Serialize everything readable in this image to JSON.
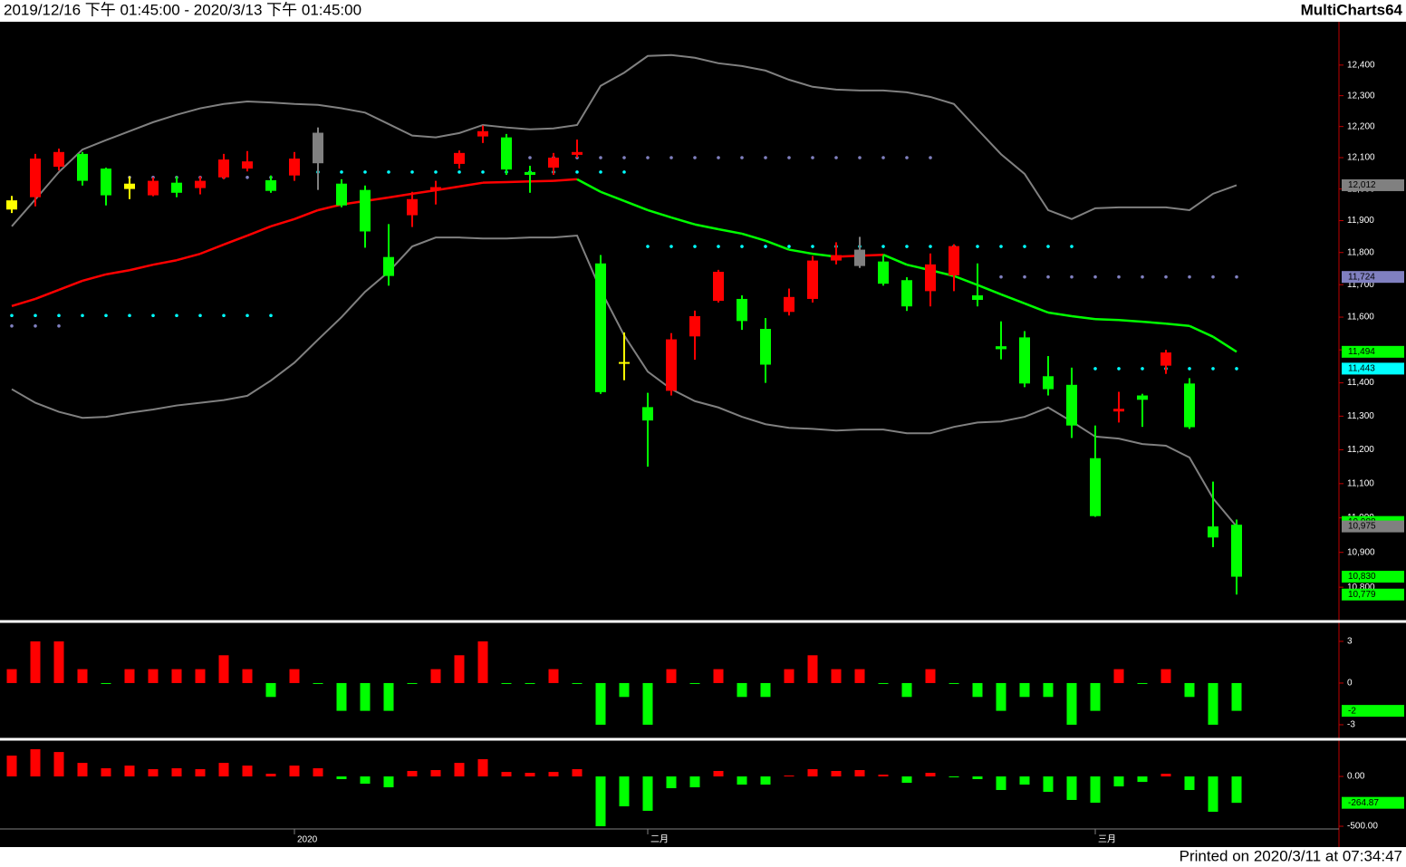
{
  "header": {
    "range": "2019/12/16 下午 01:45:00 - 2020/3/13 下午 01:45:00",
    "brand": "MultiCharts64"
  },
  "footer": {
    "printed": "Printed on 2020/3/11 at 07:34:47"
  },
  "chart_data": [
    {
      "type": "candlestick",
      "categories": [
        null,
        null,
        null,
        null,
        null,
        null,
        null,
        null,
        null,
        null,
        null,
        null,
        "2020",
        null,
        null,
        null,
        null,
        null,
        null,
        null,
        null,
        null,
        null,
        null,
        null,
        null,
        null,
        "二月",
        null,
        null,
        null,
        null,
        null,
        null,
        null,
        null,
        null,
        null,
        null,
        null,
        null,
        null,
        null,
        null,
        null,
        null,
        "三月",
        null,
        null,
        null,
        null,
        null,
        null
      ],
      "open": [
        11935,
        11974,
        12071,
        12112,
        12065,
        12017,
        11980,
        12020,
        12003,
        12037,
        12065,
        12028,
        12043,
        12082,
        12017,
        11997,
        11786,
        11917,
        11997,
        12080,
        12168,
        12165,
        12054,
        12068,
        12109,
        11766,
        11463,
        11327,
        11376,
        11541,
        11650,
        11656,
        11564,
        11616,
        11656,
        11775,
        11809,
        11772,
        11714,
        11680,
        11729,
        11667,
        11511,
        11538,
        11420,
        11394,
        11175,
        11314,
        11362,
        11452,
        11398,
        10975,
        10980
      ],
      "high": [
        11978,
        12112,
        12129,
        12118,
        12068,
        12040,
        12037,
        12040,
        12040,
        12112,
        12121,
        12043,
        12118,
        12197,
        12031,
        12011,
        11889,
        11991,
        12026,
        12123,
        12203,
        12176,
        12074,
        12115,
        12158,
        11792,
        11553,
        11370,
        11551,
        11620,
        11746,
        11667,
        11597,
        11688,
        11789,
        11832,
        11849,
        11792,
        11723,
        11797,
        11826,
        11766,
        11587,
        11557,
        11481,
        11446,
        11272,
        11373,
        11367,
        11500,
        11414,
        11106,
        10995
      ],
      "low": [
        11924,
        11945,
        12059,
        12011,
        11948,
        11968,
        11977,
        11974,
        11983,
        12031,
        12056,
        11988,
        12026,
        11997,
        11942,
        11815,
        11697,
        11880,
        11951,
        12065,
        12147,
        12045,
        11988,
        12045,
        12100,
        11367,
        11408,
        11150,
        11362,
        11470,
        11645,
        11561,
        11400,
        11605,
        11645,
        11763,
        11752,
        11697,
        11619,
        11633,
        11680,
        11633,
        11471,
        11387,
        11362,
        11235,
        11003,
        11281,
        11268,
        11427,
        11262,
        10915,
        10779
      ],
      "close": [
        11964,
        12097,
        12118,
        12026,
        11980,
        12000,
        12026,
        11988,
        12026,
        12094,
        12088,
        11994,
        12097,
        12180,
        11948,
        11866,
        11727,
        11968,
        12006,
        12115,
        12185,
        12062,
        12045,
        12100,
        12118,
        11372,
        11463,
        11287,
        11532,
        11603,
        11740,
        11588,
        11455,
        11662,
        11775,
        11792,
        11758,
        11703,
        11633,
        11763,
        11820,
        11653,
        11502,
        11398,
        11381,
        11272,
        11005,
        11322,
        11349,
        11492,
        11267,
        10943,
        10830
      ],
      "candle_colors": [
        "#ffff00",
        "#ff0000",
        "#ff0000",
        "#00ff00",
        "#00ff00",
        "#ffff00",
        "#ff0000",
        "#00ff00",
        "#ff0000",
        "#ff0000",
        "#ff0000",
        "#00ff00",
        "#ff0000",
        "#808080",
        "#00ff00",
        "#00ff00",
        "#00ff00",
        "#ff0000",
        "#ff0000",
        "#ff0000",
        "#ff0000",
        "#00ff00",
        "#00ff00",
        "#ff0000",
        "#ff0000",
        "#00ff00",
        "#ffff00",
        "#00ff00",
        "#ff0000",
        "#ff0000",
        "#ff0000",
        "#00ff00",
        "#00ff00",
        "#ff0000",
        "#ff0000",
        "#ff0000",
        "#808080",
        "#00ff00",
        "#00ff00",
        "#ff0000",
        "#ff0000",
        "#00ff00",
        "#00ff00",
        "#00ff00",
        "#00ff00",
        "#00ff00",
        "#00ff00",
        "#ff0000",
        "#00ff00",
        "#ff0000",
        "#00ff00",
        "#00ff00",
        "#00ff00"
      ],
      "bands": [
        {
          "color": "#808080",
          "values": [
            11882,
            11967,
            12054,
            12126,
            12156,
            12185,
            12214,
            12238,
            12259,
            12273,
            12281,
            12278,
            12273,
            12270,
            12259,
            12245,
            12208,
            12171,
            12165,
            12179,
            12205,
            12197,
            12191,
            12194,
            12205,
            12332,
            12375,
            12430,
            12433,
            12424,
            12406,
            12397,
            12382,
            12352,
            12329,
            12320,
            12317,
            12317,
            12311,
            12296,
            12273,
            12191,
            12111,
            12048,
            11933,
            11905,
            11939,
            11942,
            11942,
            11942,
            11933,
            11985,
            12012
          ]
        },
        {
          "color": "#808080",
          "values": [
            11381,
            11340,
            11313,
            11295,
            11298,
            11310,
            11320,
            11332,
            11340,
            11348,
            11361,
            11407,
            11461,
            11531,
            11600,
            11678,
            11740,
            11819,
            11847,
            11847,
            11844,
            11844,
            11847,
            11847,
            11853,
            11684,
            11544,
            11434,
            11381,
            11345,
            11326,
            11298,
            11276,
            11265,
            11262,
            11257,
            11260,
            11260,
            11249,
            11249,
            11268,
            11281,
            11284,
            11298,
            11326,
            11284,
            11239,
            11233,
            11217,
            11212,
            11177,
            11057,
            10975
          ]
        }
      ],
      "middle": {
        "up_color": "#ff0000",
        "down_color": "#00ff00",
        "values": [
          11634,
          11656,
          11684,
          11712,
          11732,
          11745,
          11762,
          11776,
          11796,
          11825,
          11853,
          11882,
          11905,
          11933,
          11951,
          11962,
          11973,
          11985,
          11996,
          12008,
          12020,
          12022,
          12024,
          12026,
          12031,
          11991,
          11962,
          11933,
          11910,
          11888,
          11873,
          11859,
          11837,
          11809,
          11796,
          11787,
          11790,
          11793,
          11762,
          11745,
          11727,
          11699,
          11670,
          11642,
          11614,
          11603,
          11594,
          11591,
          11586,
          11580,
          11573,
          11540,
          11494
        ]
      },
      "dots": [
        {
          "color": "#00ffff",
          "values": [
            11605,
            11605,
            11605,
            11605,
            11605,
            11605,
            11605,
            11605,
            11605,
            11605,
            11605,
            11605,
            12054,
            12054,
            12054,
            12054,
            12054,
            12054,
            12054,
            12054,
            12054,
            12054,
            12054,
            12054,
            12054,
            12054,
            12054,
            11819,
            11819,
            11819,
            11819,
            11819,
            11819,
            11819,
            11819,
            11819,
            11819,
            11819,
            11819,
            11819,
            11819,
            11819,
            11819,
            11819,
            11819,
            11819,
            11443,
            11443,
            11443,
            11443,
            11443,
            11443,
            11443
          ]
        },
        {
          "color": "#8080c0",
          "values": [
            11573,
            11573,
            11573,
            null,
            null,
            12037,
            12037,
            12037,
            12037,
            12037,
            12037,
            12037,
            null,
            null,
            null,
            null,
            null,
            null,
            null,
            null,
            null,
            null,
            12100,
            12100,
            12100,
            12100,
            12100,
            12100,
            12100,
            12100,
            12100,
            12100,
            12100,
            12100,
            12100,
            12100,
            12100,
            12100,
            12100,
            12100,
            null,
            null,
            11724,
            11724,
            11724,
            11724,
            11724,
            11724,
            11724,
            11724,
            11724,
            11724,
            11724
          ]
        }
      ],
      "ylim": [
        10705,
        12543
      ],
      "log_scale": true,
      "yticks": [
        {
          "value": 10800,
          "label": "10,800"
        },
        {
          "value": 10900,
          "label": "10,900"
        },
        {
          "value": 11000,
          "label": "11,000"
        },
        {
          "value": 11100,
          "label": "11,100"
        },
        {
          "value": 11200,
          "label": "11,200"
        },
        {
          "value": 11300,
          "label": "11,300"
        },
        {
          "value": 11400,
          "label": "11,400"
        },
        {
          "value": 11500,
          "label": "11,500"
        },
        {
          "value": 11600,
          "label": "11,600"
        },
        {
          "value": 11700,
          "label": "11,700"
        },
        {
          "value": 11800,
          "label": "11,800"
        },
        {
          "value": 11900,
          "label": "11,900"
        },
        {
          "value": 12000,
          "label": "12,000"
        },
        {
          "value": 12100,
          "label": "12,100"
        },
        {
          "value": 12200,
          "label": "12,200"
        },
        {
          "value": 12300,
          "label": "12,300"
        },
        {
          "value": 12400,
          "label": "12,400"
        }
      ],
      "price_labels": [
        {
          "value": 12012,
          "label": "12,012",
          "color": "#808080"
        },
        {
          "value": 11724,
          "label": "11,724",
          "color": "#8080c0"
        },
        {
          "value": 11494,
          "label": "11,494",
          "color": "#00ff00"
        },
        {
          "value": 11443,
          "label": "11,443",
          "color": "#00ffff"
        },
        {
          "value": 10988,
          "label": "10,988",
          "color": "#00ff00"
        },
        {
          "value": 10975,
          "label": "10,975",
          "color": "#808080"
        },
        {
          "value": 10830,
          "label": "10,830",
          "color": "#00ff00"
        },
        {
          "value": 10779,
          "label": "10,779",
          "color": "#00ff00"
        }
      ]
    },
    {
      "type": "bar",
      "up_color": "#ff0000",
      "down_color": "#00ff00",
      "values": [
        1,
        3,
        3,
        1,
        0,
        1,
        1,
        1,
        1,
        2,
        1,
        -1,
        1,
        0,
        -2,
        -2,
        -2,
        0,
        1,
        2,
        3,
        0,
        0,
        1,
        0,
        -3,
        -1,
        -3,
        1,
        0,
        1,
        -1,
        -1,
        1,
        2,
        1,
        1,
        0,
        -1,
        1,
        0,
        -1,
        -2,
        -1,
        -1,
        -3,
        -2,
        1,
        0,
        1,
        -1,
        -3,
        -2
      ],
      "ylim": [
        -3.85,
        4.17
      ],
      "yticks": [
        -3,
        0,
        3
      ],
      "price_labels": [
        {
          "value": -2,
          "label": "-2",
          "color": "#00ff00"
        }
      ]
    },
    {
      "type": "bar",
      "up_color": "#ff0000",
      "down_color": "#00ff00",
      "values": [
        209,
        273,
        245,
        136,
        82,
        109,
        73,
        82,
        73,
        136,
        109,
        27,
        109,
        82,
        -27,
        -73,
        -109,
        55,
        64,
        136,
        173,
        45,
        36,
        45,
        73,
        -500,
        -300,
        -345,
        -118,
        -109,
        55,
        -82,
        -82,
        9,
        73,
        55,
        64,
        18,
        -64,
        36,
        -9,
        -27,
        -136,
        -82,
        -155,
        -236,
        -264,
        -100,
        -55,
        27,
        -136,
        -355,
        -264.87
      ],
      "ylim": [
        -518,
        355
      ],
      "yticks": [
        {
          "value": -500,
          "label": "-500.00"
        },
        {
          "value": 0,
          "label": "0.00"
        }
      ],
      "price_labels": [
        {
          "value": -264.87,
          "label": "-264.87",
          "color": "#00ff00"
        }
      ]
    }
  ]
}
